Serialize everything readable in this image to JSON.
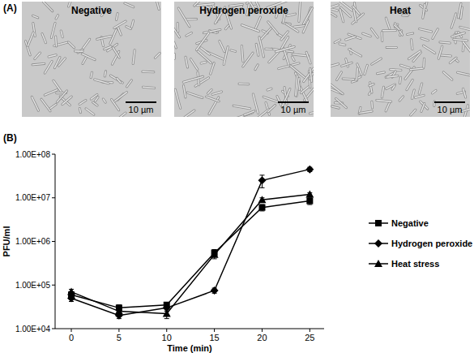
{
  "figure": {
    "panel_labels": [
      "(A)",
      "(B)"
    ],
    "images": [
      {
        "title": "Negative",
        "scale_bar": "10 µm"
      },
      {
        "title": "Hydrogen peroxide",
        "scale_bar": "10 µm"
      },
      {
        "title": "Heat",
        "scale_bar": "10 µm"
      }
    ]
  },
  "chart_data": {
    "type": "line",
    "x_label": "Time (min)",
    "y_label": "PFU/ml",
    "x": [
      0,
      5,
      10,
      15,
      20,
      25
    ],
    "xlim": [
      -1.7,
      26.5
    ],
    "xticks": [
      0,
      5,
      10,
      15,
      20,
      25
    ],
    "log": "y",
    "ylim": [
      10000,
      100000000
    ],
    "yticks": [
      {
        "value": 10000,
        "label": "1.00E+04"
      },
      {
        "value": 100000,
        "label": "1.00E+05"
      },
      {
        "value": 1000000,
        "label": "1.00E+06"
      },
      {
        "value": 10000000,
        "label": "1.00E+07"
      },
      {
        "value": 100000000,
        "label": "1.00E+08"
      }
    ],
    "grid": false,
    "legend": "right",
    "series": [
      {
        "name": "Negative",
        "color": "#000000",
        "marker": "square",
        "values": [
          60000,
          30000,
          35000,
          550000,
          6000000,
          8500000
        ],
        "errors": [
          10000,
          5000,
          5000,
          100000,
          1000000,
          1500000
        ]
      },
      {
        "name": "Hydrogen peroxide",
        "color": "#000000",
        "marker": "diamond",
        "values": [
          50000,
          20000,
          30000,
          75000,
          25000000,
          45000000
        ],
        "errors": [
          8000,
          3000,
          5000,
          10000,
          8000000,
          5000000
        ]
      },
      {
        "name": "Heat stress",
        "color": "#000000",
        "marker": "triangle",
        "values": [
          70000,
          25000,
          22000,
          500000,
          9000000,
          12000000
        ],
        "errors": [
          10000,
          5000,
          5000,
          100000,
          1000000,
          1000000
        ]
      }
    ]
  }
}
